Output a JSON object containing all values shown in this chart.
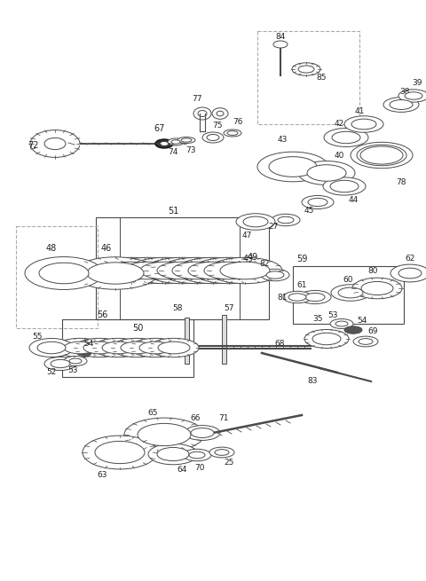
{
  "bg_color": "#ffffff",
  "line_color": "#4a4a4a",
  "dark_color": "#222222",
  "fig_width": 4.8,
  "fig_height": 6.55,
  "dpi": 100
}
